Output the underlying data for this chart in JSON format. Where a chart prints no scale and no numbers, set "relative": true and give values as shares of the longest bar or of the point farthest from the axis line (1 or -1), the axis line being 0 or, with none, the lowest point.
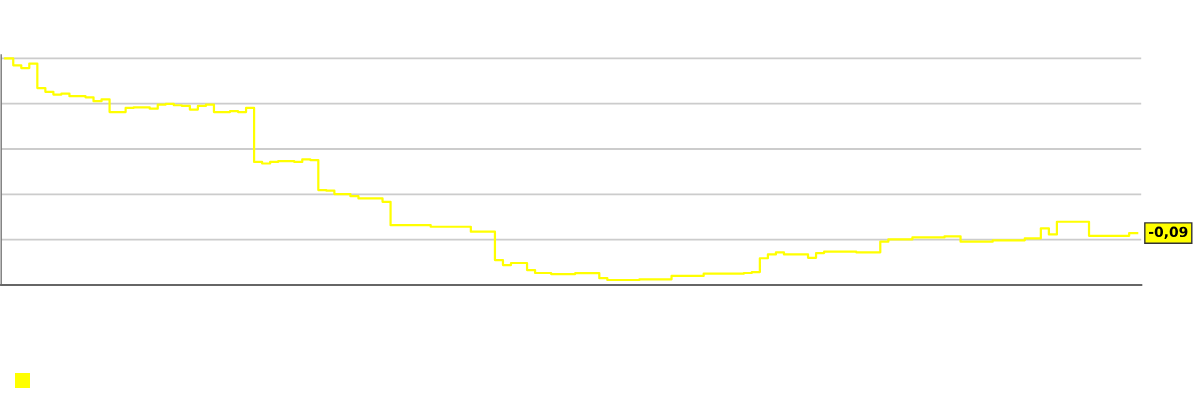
{
  "chart_data": {
    "type": "step",
    "relative": true,
    "categories": [
      null,
      null,
      null,
      null,
      null,
      null,
      null,
      null,
      null,
      null,
      null,
      null,
      null,
      null,
      null,
      null,
      null,
      null,
      null,
      null,
      null,
      null,
      null,
      null,
      null,
      null,
      null,
      null,
      null,
      null,
      null,
      null,
      null,
      null,
      null,
      null,
      null,
      null,
      null,
      null,
      null,
      null,
      null,
      null,
      null,
      null,
      null,
      null,
      null,
      null,
      null,
      null,
      null,
      null,
      null,
      null,
      null,
      null,
      null,
      null,
      null,
      null,
      null,
      null,
      null,
      null,
      null,
      null,
      null,
      null,
      null,
      null,
      null,
      null,
      null,
      null,
      null,
      null,
      null,
      null,
      null,
      null,
      null,
      null,
      null,
      null,
      null,
      null,
      null,
      null,
      null,
      null,
      null,
      null,
      null,
      null,
      null,
      null,
      null,
      null,
      null,
      null,
      null,
      null,
      null,
      null,
      null,
      null,
      null,
      null,
      null,
      null,
      null,
      null,
      null,
      null,
      null,
      null,
      null,
      null,
      null,
      null,
      null,
      null,
      null,
      null,
      null,
      null,
      null,
      null,
      null,
      null,
      null,
      null,
      null,
      null,
      null,
      null,
      null,
      null,
      null,
      null
    ],
    "series": [
      {
        "color": "#ffff00",
        "values": [
          1.0,
          0.969,
          0.957,
          0.977,
          0.869,
          0.852,
          0.84,
          0.844,
          0.833,
          0.833,
          0.828,
          0.811,
          0.819,
          0.763,
          0.763,
          0.781,
          0.784,
          0.784,
          0.778,
          0.796,
          0.799,
          0.793,
          0.79,
          0.774,
          0.79,
          0.796,
          0.763,
          0.763,
          0.767,
          0.763,
          0.781,
          0.543,
          0.536,
          0.543,
          0.546,
          0.546,
          0.543,
          0.554,
          0.551,
          0.419,
          0.416,
          0.401,
          0.401,
          0.392,
          0.382,
          0.382,
          0.382,
          0.367,
          0.264,
          0.264,
          0.264,
          0.264,
          0.264,
          0.257,
          0.257,
          0.257,
          0.257,
          0.257,
          0.235,
          0.235,
          0.235,
          0.11,
          0.088,
          0.097,
          0.097,
          0.066,
          0.053,
          0.053,
          0.048,
          0.048,
          0.048,
          0.052,
          0.052,
          0.052,
          0.03,
          0.022,
          0.022,
          0.022,
          0.022,
          0.025,
          0.025,
          0.025,
          0.025,
          0.04,
          0.04,
          0.04,
          0.04,
          0.05,
          0.05,
          0.05,
          0.05,
          0.05,
          0.053,
          0.057,
          0.118,
          0.135,
          0.144,
          0.135,
          0.135,
          0.135,
          0.12,
          0.141,
          0.147,
          0.147,
          0.147,
          0.147,
          0.144,
          0.144,
          0.144,
          0.191,
          0.201,
          0.201,
          0.201,
          0.21,
          0.21,
          0.21,
          0.21,
          0.215,
          0.215,
          0.191,
          0.191,
          0.191,
          0.191,
          0.197,
          0.197,
          0.197,
          0.197,
          0.206,
          0.206,
          0.25,
          0.223,
          0.279,
          0.279,
          0.279,
          0.279,
          0.217,
          0.217,
          0.217,
          0.217,
          0.217,
          0.229,
          0.229
        ]
      }
    ],
    "annotations": [
      "-0,09"
    ],
    "grid": "y",
    "tick_labels": false
  }
}
